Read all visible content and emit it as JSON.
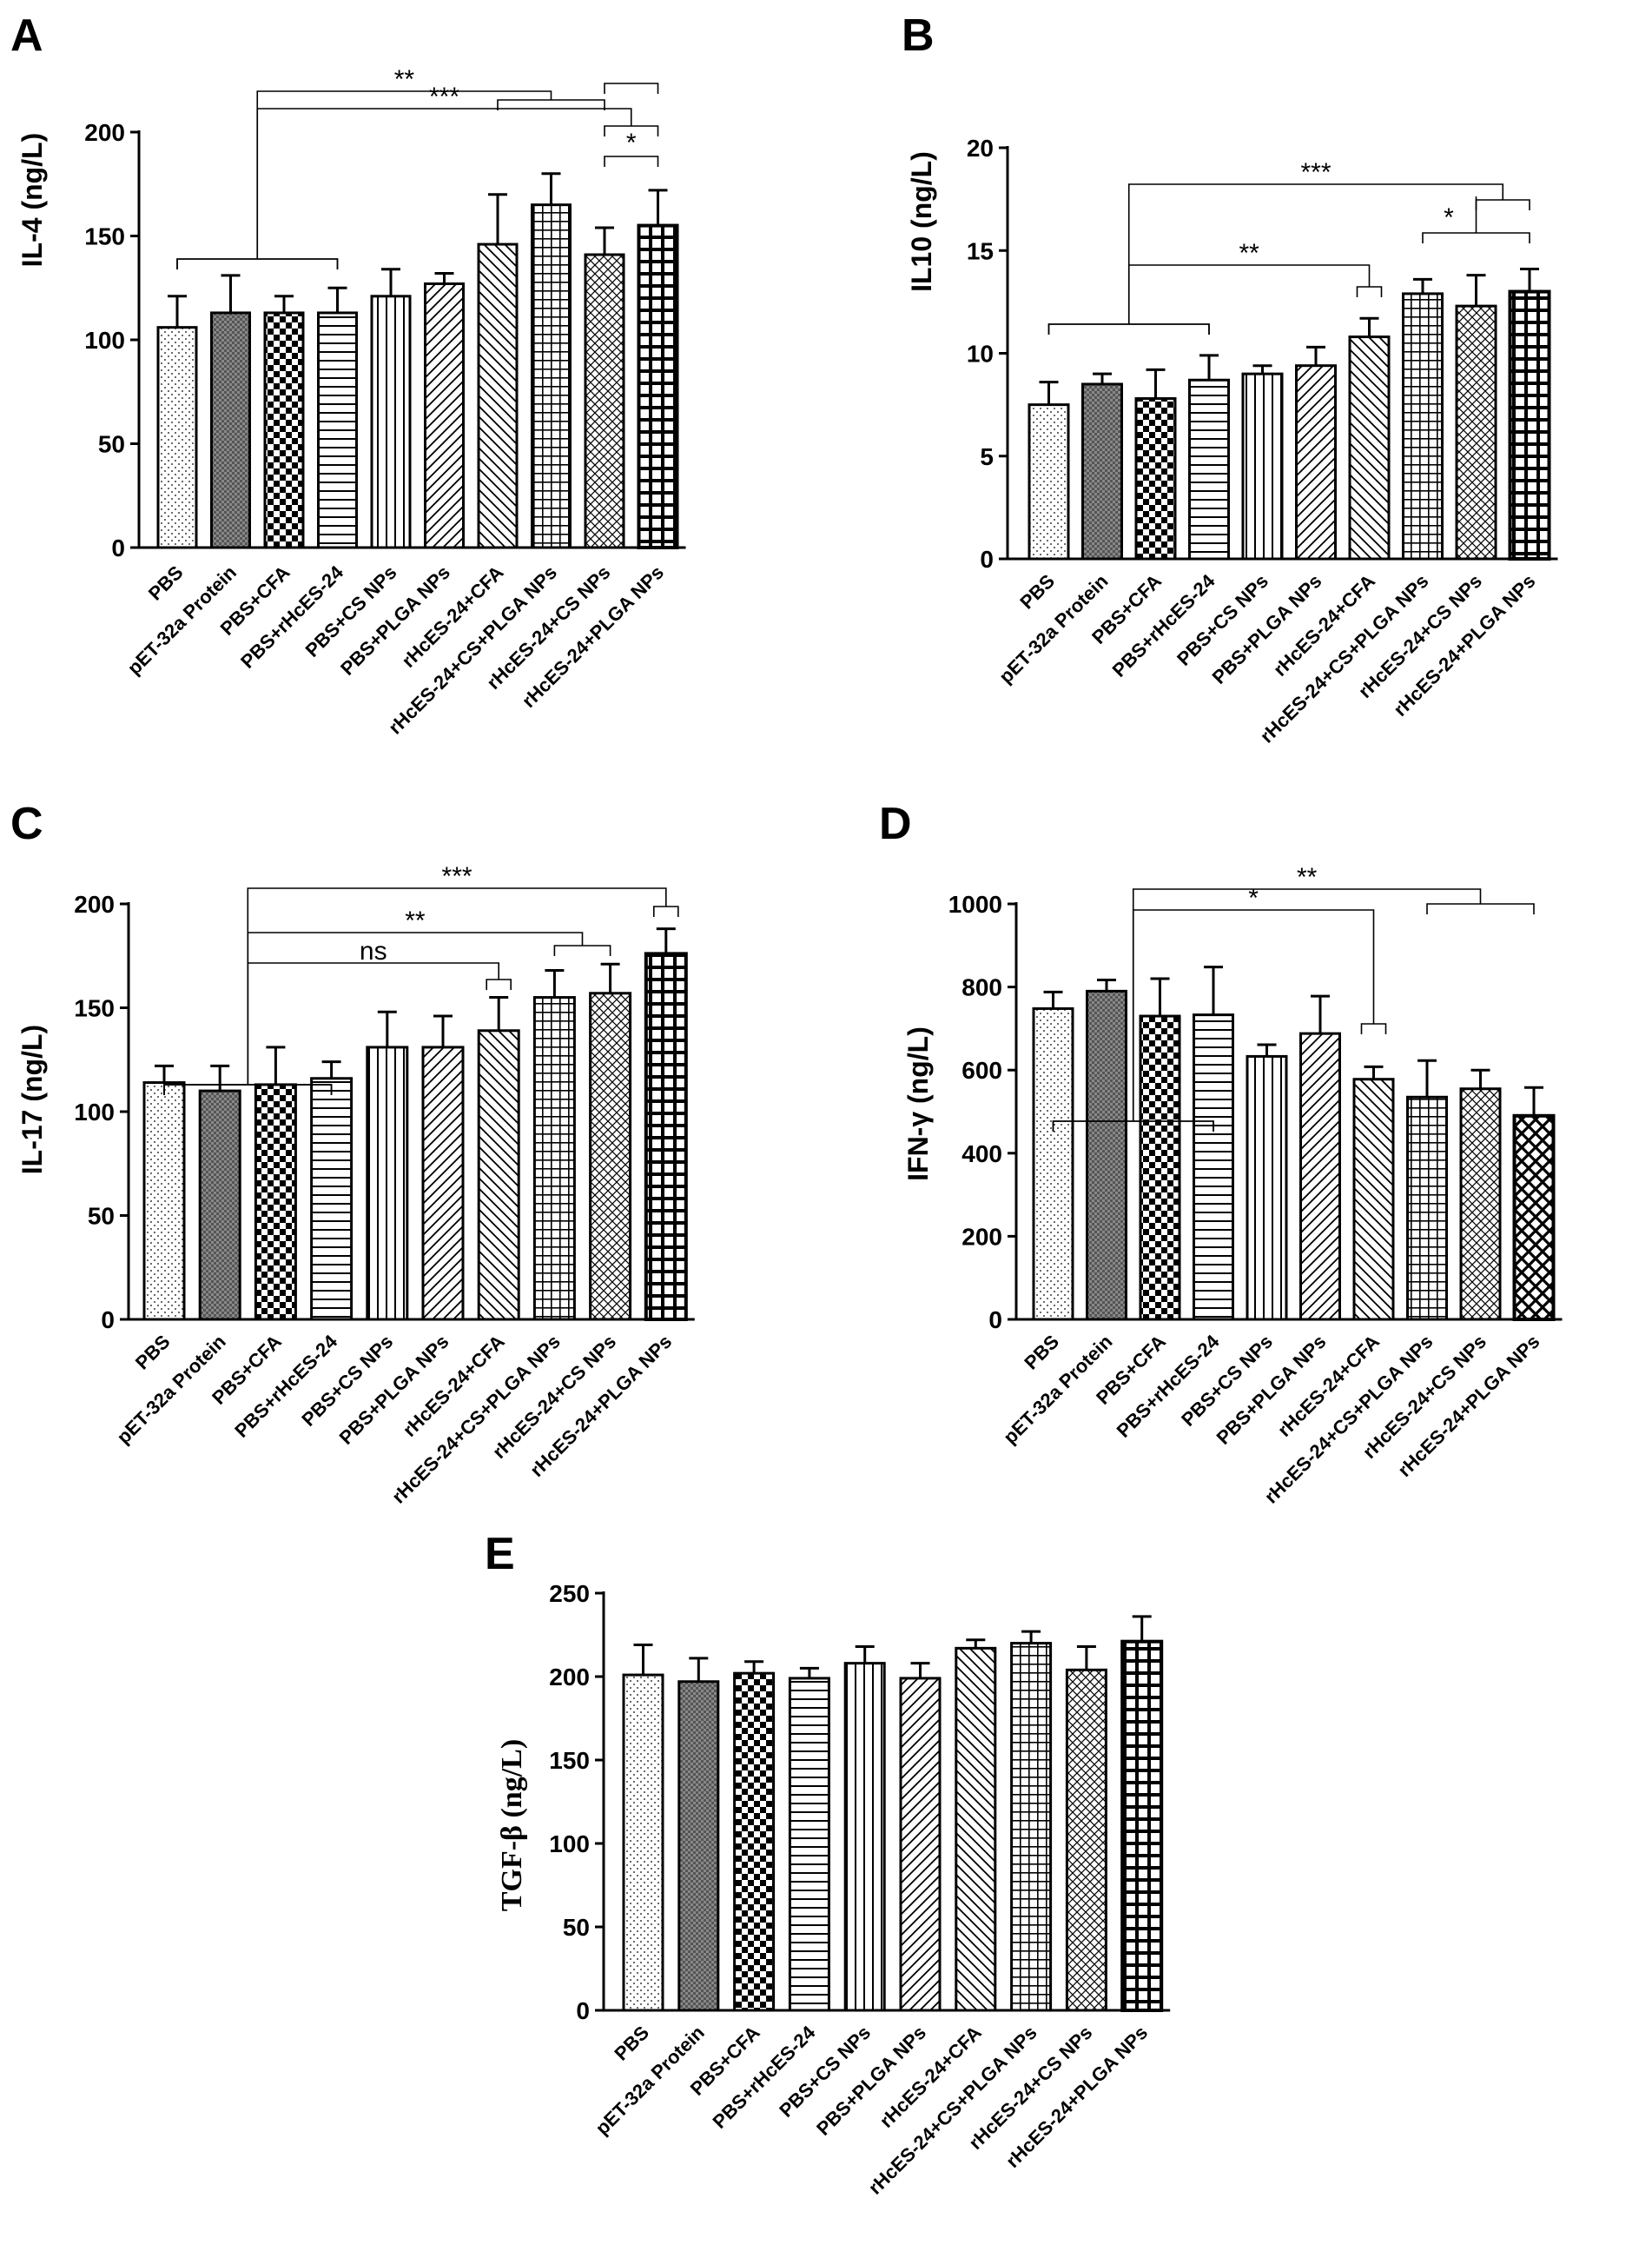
{
  "chart_data": [
    {
      "panel": "A",
      "type": "bar",
      "title": "",
      "xlabel": "",
      "ylabel": "IL-4 (ng/L)",
      "ylim": [
        0,
        200
      ],
      "yticks": [
        "0",
        "50",
        "100",
        "150",
        "200"
      ],
      "categories": [
        "PBS",
        "pET-32a Protein",
        "PBS+CFA",
        "PBS+rHcES-24",
        "PBS+CS NPs",
        "PBS+PLGA NPs",
        "rHcES-24+CFA",
        "rHcES-24+CS+PLGA NPs",
        "rHcES-24+CS NPs",
        "rHcES-24+PLGA NPs"
      ],
      "values": [
        106,
        113,
        113,
        113,
        121,
        127,
        146,
        165,
        141,
        155
      ],
      "errors": [
        15,
        18,
        8,
        12,
        13,
        5,
        24,
        15,
        13,
        17
      ],
      "significance": [
        "***",
        "**",
        "*"
      ]
    },
    {
      "panel": "B",
      "type": "bar",
      "title": "",
      "xlabel": "",
      "ylabel": "IL10 (ng/L)",
      "ylim": [
        0,
        20
      ],
      "yticks": [
        "0",
        "5",
        "10",
        "15",
        "20"
      ],
      "categories": [
        "PBS",
        "pET-32a Protein",
        "PBS+CFA",
        "PBS+rHcES-24",
        "PBS+CS NPs",
        "PBS+PLGA NPs",
        "rHcES-24+CFA",
        "rHcES-24+CS+PLGA NPs",
        "rHcES-24+CS NPs",
        "rHcES-24+PLGA NPs"
      ],
      "values": [
        7.5,
        8.5,
        7.8,
        8.7,
        9.0,
        9.4,
        10.8,
        12.9,
        12.3,
        13.0
      ],
      "errors": [
        1.1,
        0.5,
        1.4,
        1.2,
        0.4,
        0.9,
        0.9,
        0.7,
        1.5,
        1.1
      ],
      "significance": [
        "***",
        "**",
        "*"
      ]
    },
    {
      "panel": "C",
      "type": "bar",
      "title": "",
      "xlabel": "",
      "ylabel": "IL-17 (ng/L)",
      "ylim": [
        0,
        200
      ],
      "yticks": [
        "0",
        "50",
        "100",
        "150",
        "200"
      ],
      "categories": [
        "PBS",
        "pET-32a Protein",
        "PBS+CFA",
        "PBS+rHcES-24",
        "PBS+CS NPs",
        "PBS+PLGA NPs",
        "rHcES-24+CFA",
        "rHcES-24+CS+PLGA NPs",
        "rHcES-24+CS NPs",
        "rHcES-24+PLGA NPs"
      ],
      "values": [
        114,
        110,
        113,
        116,
        131,
        131,
        139,
        155,
        157,
        176
      ],
      "errors": [
        8,
        12,
        18,
        8,
        17,
        15,
        16,
        13,
        14,
        12
      ],
      "significance": [
        "***",
        "**",
        "ns"
      ]
    },
    {
      "panel": "D",
      "type": "bar",
      "title": "",
      "xlabel": "",
      "ylabel": "IFN-γ (ng/L)",
      "ylim": [
        0,
        1000
      ],
      "yticks": [
        "0",
        "200",
        "400",
        "600",
        "800",
        "1000"
      ],
      "categories": [
        "PBS",
        "pET-32a Protein",
        "PBS+CFA",
        "PBS+rHcES-24",
        "PBS+CS NPs",
        "PBS+PLGA NPs",
        "rHcES-24+CFA",
        "rHcES-24+CS+PLGA NPs",
        "rHcES-24+CS NPs",
        "rHcES-24+PLGA NPs"
      ],
      "values": [
        748,
        790,
        730,
        733,
        633,
        688,
        578,
        535,
        555,
        490
      ],
      "errors": [
        40,
        27,
        90,
        115,
        28,
        90,
        30,
        88,
        45,
        68
      ],
      "significance": [
        "**",
        "*"
      ]
    },
    {
      "panel": "E",
      "type": "bar",
      "title": "",
      "xlabel": "",
      "ylabel": "TGF-β (ng/L)",
      "ylim": [
        0,
        250
      ],
      "yticks": [
        "0",
        "50",
        "100",
        "150",
        "200",
        "250"
      ],
      "categories": [
        "PBS",
        "pET-32a Protein",
        "PBS+CFA",
        "PBS+rHcES-24",
        "PBS+CS NPs",
        "PBS+PLGA NPs",
        "rHcES-24+CFA",
        "rHcES-24+CS+PLGA NPs",
        "rHcES-24+CS NPs",
        "rHcES-24+PLGA NPs"
      ],
      "values": [
        201,
        197,
        202,
        199,
        208,
        199,
        217,
        220,
        204,
        221
      ],
      "errors": [
        18,
        14,
        7,
        6,
        10,
        9,
        5,
        7,
        14,
        15
      ],
      "significance": []
    }
  ]
}
